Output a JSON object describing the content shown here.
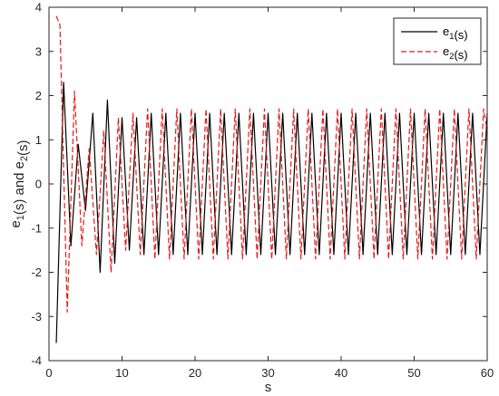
{
  "chart_data": {
    "type": "line",
    "xlabel": "s",
    "ylabel": "e_1(s) and e_2(s)",
    "xlim": [
      0,
      60
    ],
    "ylim": [
      -4,
      4
    ],
    "xticks": [
      "0",
      "10",
      "20",
      "30",
      "40",
      "50",
      "60"
    ],
    "yticks": [
      "-4",
      "-3",
      "-2",
      "-1",
      "0",
      "1",
      "2",
      "3",
      "4"
    ],
    "grid": false,
    "legend_position": "top-right",
    "series": [
      {
        "name": "e_1(s)",
        "color": "#000000",
        "dash": "solid",
        "x": [
          1.0,
          2.0,
          3.0,
          4.0,
          5.0,
          6.0,
          7.0,
          8.0,
          9.0,
          10.0,
          11.0,
          12.0,
          13.0,
          14.0,
          15.0,
          16.0,
          17.0,
          18.0,
          19.0,
          20.0,
          21.0,
          22.0,
          23.0,
          24.0,
          25.0,
          26.0,
          27.0,
          28.0,
          29.0,
          30.0,
          31.0,
          32.0,
          33.0,
          34.0,
          35.0,
          36.0,
          37.0,
          38.0,
          39.0,
          40.0,
          41.0,
          42.0,
          43.0,
          44.0,
          45.0,
          46.0,
          47.0,
          48.0,
          49.0,
          50.0,
          51.0,
          52.0,
          53.0,
          54.0,
          55.0,
          56.0,
          57.0,
          58.0,
          59.0,
          60.0
        ],
        "values": [
          -3.6,
          2.3,
          -1.4,
          0.9,
          -0.6,
          1.6,
          -2.0,
          1.9,
          -1.8,
          1.5,
          -1.5,
          1.5,
          -1.6,
          1.6,
          -1.6,
          1.6,
          -1.6,
          1.6,
          -1.6,
          1.6,
          -1.6,
          1.6,
          -1.6,
          1.6,
          -1.6,
          1.6,
          -1.6,
          1.6,
          -1.6,
          1.6,
          -1.6,
          1.6,
          -1.6,
          1.6,
          -1.6,
          1.6,
          -1.6,
          1.6,
          -1.6,
          1.6,
          -1.6,
          1.6,
          -1.6,
          1.6,
          -1.6,
          1.6,
          -1.6,
          1.6,
          -1.6,
          1.6,
          -1.6,
          1.6,
          -1.6,
          1.6,
          -1.6,
          1.6,
          -1.6,
          1.6,
          -1.6,
          1.6
        ]
      },
      {
        "name": "e_2(s)",
        "color": "#e8191a",
        "dash": "dashed",
        "x": [
          1.0,
          1.5,
          2.5,
          3.5,
          4.5,
          5.5,
          6.5,
          7.5,
          8.5,
          9.5,
          10.5,
          11.5,
          12.5,
          13.5,
          14.5,
          15.5,
          16.5,
          17.5,
          18.5,
          19.5,
          20.5,
          21.5,
          22.5,
          23.5,
          24.5,
          25.5,
          26.5,
          27.5,
          28.5,
          29.5,
          30.5,
          31.5,
          32.5,
          33.5,
          34.5,
          35.5,
          36.5,
          37.5,
          38.5,
          39.5,
          40.5,
          41.5,
          42.5,
          43.5,
          44.5,
          45.5,
          46.5,
          47.5,
          48.5,
          49.5,
          50.5,
          51.5,
          52.5,
          53.5,
          54.5,
          55.5,
          56.5,
          57.5,
          58.5,
          59.5,
          60.0
        ],
        "values": [
          3.8,
          3.6,
          -2.9,
          2.1,
          -1.4,
          0.8,
          -1.6,
          1.2,
          -2.0,
          1.5,
          -1.5,
          1.6,
          -1.6,
          1.7,
          -1.7,
          1.7,
          -1.7,
          1.7,
          -1.7,
          1.7,
          -1.7,
          1.7,
          -1.7,
          1.7,
          -1.7,
          1.7,
          -1.7,
          1.7,
          -1.7,
          1.7,
          -1.7,
          1.7,
          -1.7,
          1.7,
          -1.7,
          1.7,
          -1.7,
          1.7,
          -1.7,
          1.7,
          -1.7,
          1.7,
          -1.7,
          1.7,
          -1.7,
          1.7,
          -1.7,
          1.7,
          -1.7,
          1.7,
          -1.7,
          1.7,
          -1.7,
          1.7,
          -1.7,
          1.7,
          -1.7,
          1.7,
          -1.7,
          1.7,
          1.2
        ]
      }
    ]
  }
}
